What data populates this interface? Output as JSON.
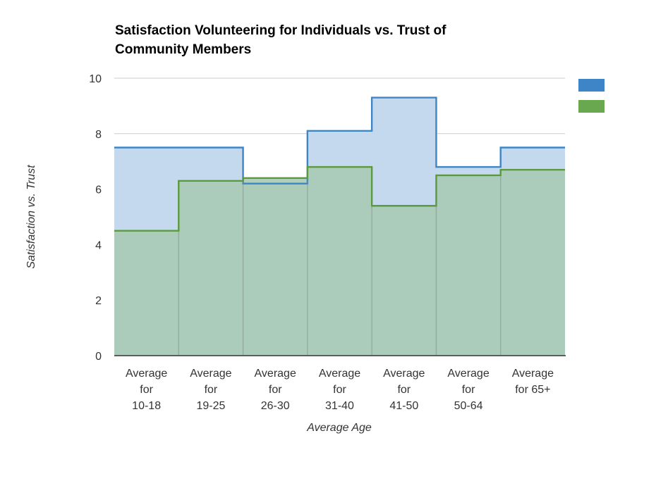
{
  "chart_data": {
    "type": "area",
    "step": true,
    "title_lines": [
      "Satisfaction Volunteering for Individuals vs. Trust of",
      "Community Members"
    ],
    "title": "Satisfaction Volunteering for Individuals vs. Trust of Community Members",
    "xlabel": "Average Age",
    "ylabel": "Satisfaction vs. Trust",
    "ylim": [
      0,
      10
    ],
    "yticks": [
      0,
      2,
      4,
      6,
      8,
      10
    ],
    "grid": true,
    "legend_position": "top-right",
    "categories": [
      [
        "Average",
        "for",
        "10-18"
      ],
      [
        "Average",
        "for",
        "19-25"
      ],
      [
        "Average",
        "for",
        "26-30"
      ],
      [
        "Average",
        "for",
        "31-40"
      ],
      [
        "Average",
        "for",
        "41-50"
      ],
      [
        "Average",
        "for",
        "50-64"
      ],
      [
        "Average",
        "for 65+"
      ]
    ],
    "series": [
      {
        "values": [
          7.5,
          7.5,
          6.2,
          8.1,
          9.3,
          6.8,
          7.5
        ],
        "line_color": "#3d85c6",
        "fill_color": "#c5d9ee",
        "legend_color": "#3d85c6"
      },
      {
        "values": [
          4.5,
          6.3,
          6.4,
          6.8,
          5.4,
          6.5,
          6.7
        ],
        "line_color": "#5b9a3c",
        "fill_color": "#a9cbb6",
        "legend_color": "#6aa84f"
      }
    ]
  }
}
